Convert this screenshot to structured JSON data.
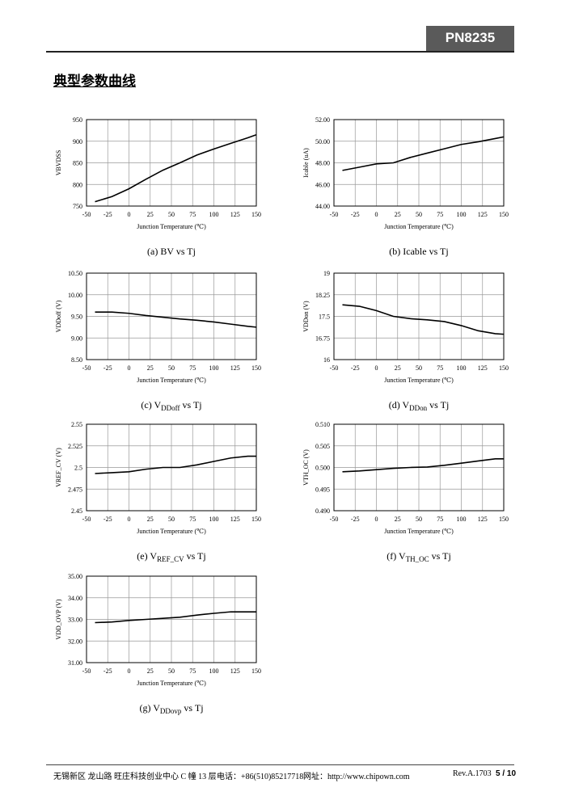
{
  "header": {
    "part": "PN8235",
    "section": "典型参数曲线"
  },
  "chart_data": [
    {
      "type": "line",
      "ylabel": "VBVDSS",
      "xlabel": "Junction Temperature (℃)",
      "caption": [
        "(a) BV vs Tj"
      ],
      "x": [
        -40,
        -20,
        0,
        20,
        40,
        60,
        80,
        100,
        120,
        140,
        150
      ],
      "values": [
        760,
        772,
        790,
        812,
        833,
        850,
        868,
        882,
        895,
        908,
        915
      ],
      "xlim": [
        -50,
        150
      ],
      "xticks": [
        -50,
        -25,
        0,
        25,
        50,
        75,
        100,
        125,
        150
      ],
      "ylim": [
        750,
        950
      ],
      "yticks": [
        750,
        800,
        850,
        900,
        950
      ],
      "grid": true,
      "color": "#000000"
    },
    {
      "type": "line",
      "ylabel": "Icable (uA)",
      "xlabel": "Junction Temperature (℃)",
      "caption": [
        "(b) Icable vs Tj"
      ],
      "x": [
        -40,
        -20,
        0,
        20,
        40,
        60,
        80,
        100,
        120,
        140,
        150
      ],
      "values": [
        47.3,
        47.6,
        47.9,
        48.0,
        48.5,
        48.9,
        49.3,
        49.7,
        49.95,
        50.25,
        50.4
      ],
      "xlim": [
        -50,
        150
      ],
      "xticks": [
        -50,
        -25,
        0,
        25,
        50,
        75,
        100,
        125,
        150
      ],
      "ylim": [
        44,
        52
      ],
      "yticks": [
        {
          "value": 44,
          "label": "44.00"
        },
        {
          "value": 46,
          "label": "46.00"
        },
        {
          "value": 48,
          "label": "48.00"
        },
        {
          "value": 50,
          "label": "50.00"
        },
        {
          "value": 52,
          "label": "52.00"
        }
      ],
      "grid": true,
      "color": "#000000"
    },
    {
      "type": "line",
      "ylabel": "VDDoff (V)",
      "xlabel": "Junction Temperature (℃)",
      "caption": [
        "(c) V",
        "DDoff",
        " vs Tj"
      ],
      "x": [
        -40,
        -20,
        0,
        20,
        40,
        60,
        80,
        100,
        120,
        140,
        150
      ],
      "values": [
        9.6,
        9.6,
        9.57,
        9.52,
        9.48,
        9.44,
        9.41,
        9.37,
        9.32,
        9.27,
        9.25
      ],
      "xlim": [
        -50,
        150
      ],
      "xticks": [
        -50,
        -25,
        0,
        25,
        50,
        75,
        100,
        125,
        150
      ],
      "ylim": [
        8.5,
        10.5
      ],
      "yticks": [
        {
          "value": 8.5,
          "label": "8.50"
        },
        {
          "value": 9,
          "label": "9.00"
        },
        {
          "value": 9.5,
          "label": "9.50"
        },
        {
          "value": 10,
          "label": "10.00"
        },
        {
          "value": 10.5,
          "label": "10.50"
        }
      ],
      "grid": true,
      "color": "#000000"
    },
    {
      "type": "line",
      "ylabel": "VDDon (V)",
      "xlabel": "Junction Temperature (℃)",
      "caption": [
        "(d) V",
        "DDon",
        " vs Tj"
      ],
      "x": [
        -40,
        -20,
        0,
        20,
        40,
        60,
        80,
        100,
        120,
        140,
        150
      ],
      "values": [
        17.9,
        17.85,
        17.7,
        17.5,
        17.42,
        17.38,
        17.32,
        17.18,
        17.0,
        16.9,
        16.88
      ],
      "xlim": [
        -50,
        150
      ],
      "xticks": [
        -50,
        -25,
        0,
        25,
        50,
        75,
        100,
        125,
        150
      ],
      "ylim": [
        16,
        19
      ],
      "yticks": [
        16,
        16.75,
        17.5,
        18.25,
        19
      ],
      "grid": true,
      "color": "#000000"
    },
    {
      "type": "line",
      "ylabel": "VREF_CV (V)",
      "xlabel": "Junction Temperature (℃)",
      "caption": [
        "(e) V",
        "REF_CV",
        " vs Tj"
      ],
      "x": [
        -40,
        -20,
        0,
        20,
        40,
        60,
        80,
        100,
        120,
        140,
        150
      ],
      "values": [
        2.493,
        2.494,
        2.495,
        2.498,
        2.5,
        2.5,
        2.503,
        2.507,
        2.511,
        2.513,
        2.513
      ],
      "xlim": [
        -50,
        150
      ],
      "xticks": [
        -50,
        -25,
        0,
        25,
        50,
        75,
        100,
        125,
        150
      ],
      "ylim": [
        2.45,
        2.55
      ],
      "yticks": [
        2.45,
        2.475,
        2.5,
        2.525,
        2.55
      ],
      "grid": true,
      "color": "#000000"
    },
    {
      "type": "line",
      "ylabel": "VTH_OC (V)",
      "xlabel": "Junction Temperature (℃)",
      "caption": [
        "(f) V",
        "TH_OC",
        " vs Tj"
      ],
      "x": [
        -40,
        -20,
        0,
        20,
        40,
        60,
        80,
        100,
        120,
        140,
        150
      ],
      "values": [
        0.499,
        0.4992,
        0.4995,
        0.4998,
        0.5,
        0.5001,
        0.5005,
        0.501,
        0.5015,
        0.502,
        0.502
      ],
      "xlim": [
        -50,
        150
      ],
      "xticks": [
        -50,
        -25,
        0,
        25,
        50,
        75,
        100,
        125,
        150
      ],
      "ylim": [
        0.49,
        0.51
      ],
      "yticks": [
        {
          "value": 0.49,
          "label": "0.490"
        },
        0.495,
        {
          "value": 0.5,
          "label": "0.500"
        },
        0.505,
        {
          "value": 0.51,
          "label": "0.510"
        }
      ],
      "grid": true,
      "color": "#000000"
    },
    {
      "type": "line",
      "ylabel": "VDD_OVP (V)",
      "xlabel": "Junction Temperature (℃)",
      "caption": [
        "(g) V",
        "DDovp",
        " vs Tj"
      ],
      "x": [
        -40,
        -20,
        0,
        20,
        40,
        60,
        80,
        100,
        120,
        140,
        150
      ],
      "values": [
        32.85,
        32.88,
        32.95,
        33.0,
        33.05,
        33.1,
        33.2,
        33.28,
        33.35,
        33.35,
        33.35
      ],
      "xlim": [
        -50,
        150
      ],
      "xticks": [
        -50,
        -25,
        0,
        25,
        50,
        75,
        100,
        125,
        150
      ],
      "ylim": [
        31,
        35
      ],
      "yticks": [
        {
          "value": 31,
          "label": "31.00"
        },
        {
          "value": 32,
          "label": "32.00"
        },
        {
          "value": 33,
          "label": "33.00"
        },
        {
          "value": 34,
          "label": "34.00"
        },
        {
          "value": 35,
          "label": "35.00"
        }
      ],
      "grid": true,
      "color": "#000000"
    }
  ],
  "footer": {
    "address": "无锡新区 龙山路 旺庄科技创业中心 C 幢 13 层",
    "phone": "电话：+86(510)85217718",
    "web": "网址：http://www.chipown.com",
    "rev": "Rev.A.1703",
    "page": "5 / 10"
  }
}
